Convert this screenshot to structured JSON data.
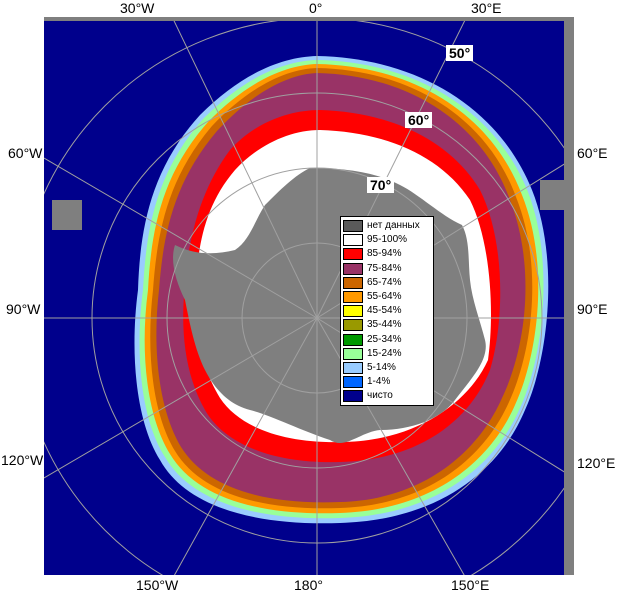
{
  "labels": {
    "top": [
      "30°W",
      "0°",
      "30°E"
    ],
    "left": [
      "60°W",
      "90°W",
      "120°W"
    ],
    "right": [
      "60°E",
      "90°E",
      "120°E"
    ],
    "bottom": [
      "150°W",
      "180°",
      "150°E"
    ],
    "lat": [
      "50°",
      "60°",
      "70°"
    ]
  },
  "legend": [
    {
      "label": "нет данных",
      "color": "#5a5a5a"
    },
    {
      "label": "95-100%",
      "color": "#ffffff"
    },
    {
      "label": "85-94%",
      "color": "#ff0000"
    },
    {
      "label": "75-84%",
      "color": "#993366"
    },
    {
      "label": "65-74%",
      "color": "#cc6600"
    },
    {
      "label": "55-64%",
      "color": "#ff9900"
    },
    {
      "label": "45-54%",
      "color": "#ffff00"
    },
    {
      "label": "35-44%",
      "color": "#999900"
    },
    {
      "label": "25-34%",
      "color": "#009900"
    },
    {
      "label": "15-24%",
      "color": "#99ff99"
    },
    {
      "label": "5-14%",
      "color": "#99ccff"
    },
    {
      "label": "1-4%",
      "color": "#0066ff"
    },
    {
      "label": "чисто",
      "color": "#00008c"
    }
  ],
  "colors": {
    "open_water": "#00008c",
    "land": "#7f7f7f",
    "ice_95_100": "#ffffff",
    "ice_85_94": "#ff0000",
    "ice_75_84": "#993366",
    "ice_65_74": "#cc6600",
    "ice_55_64": "#ff9900",
    "ice_15_24": "#99ff99",
    "ice_5_14": "#99ccff"
  }
}
